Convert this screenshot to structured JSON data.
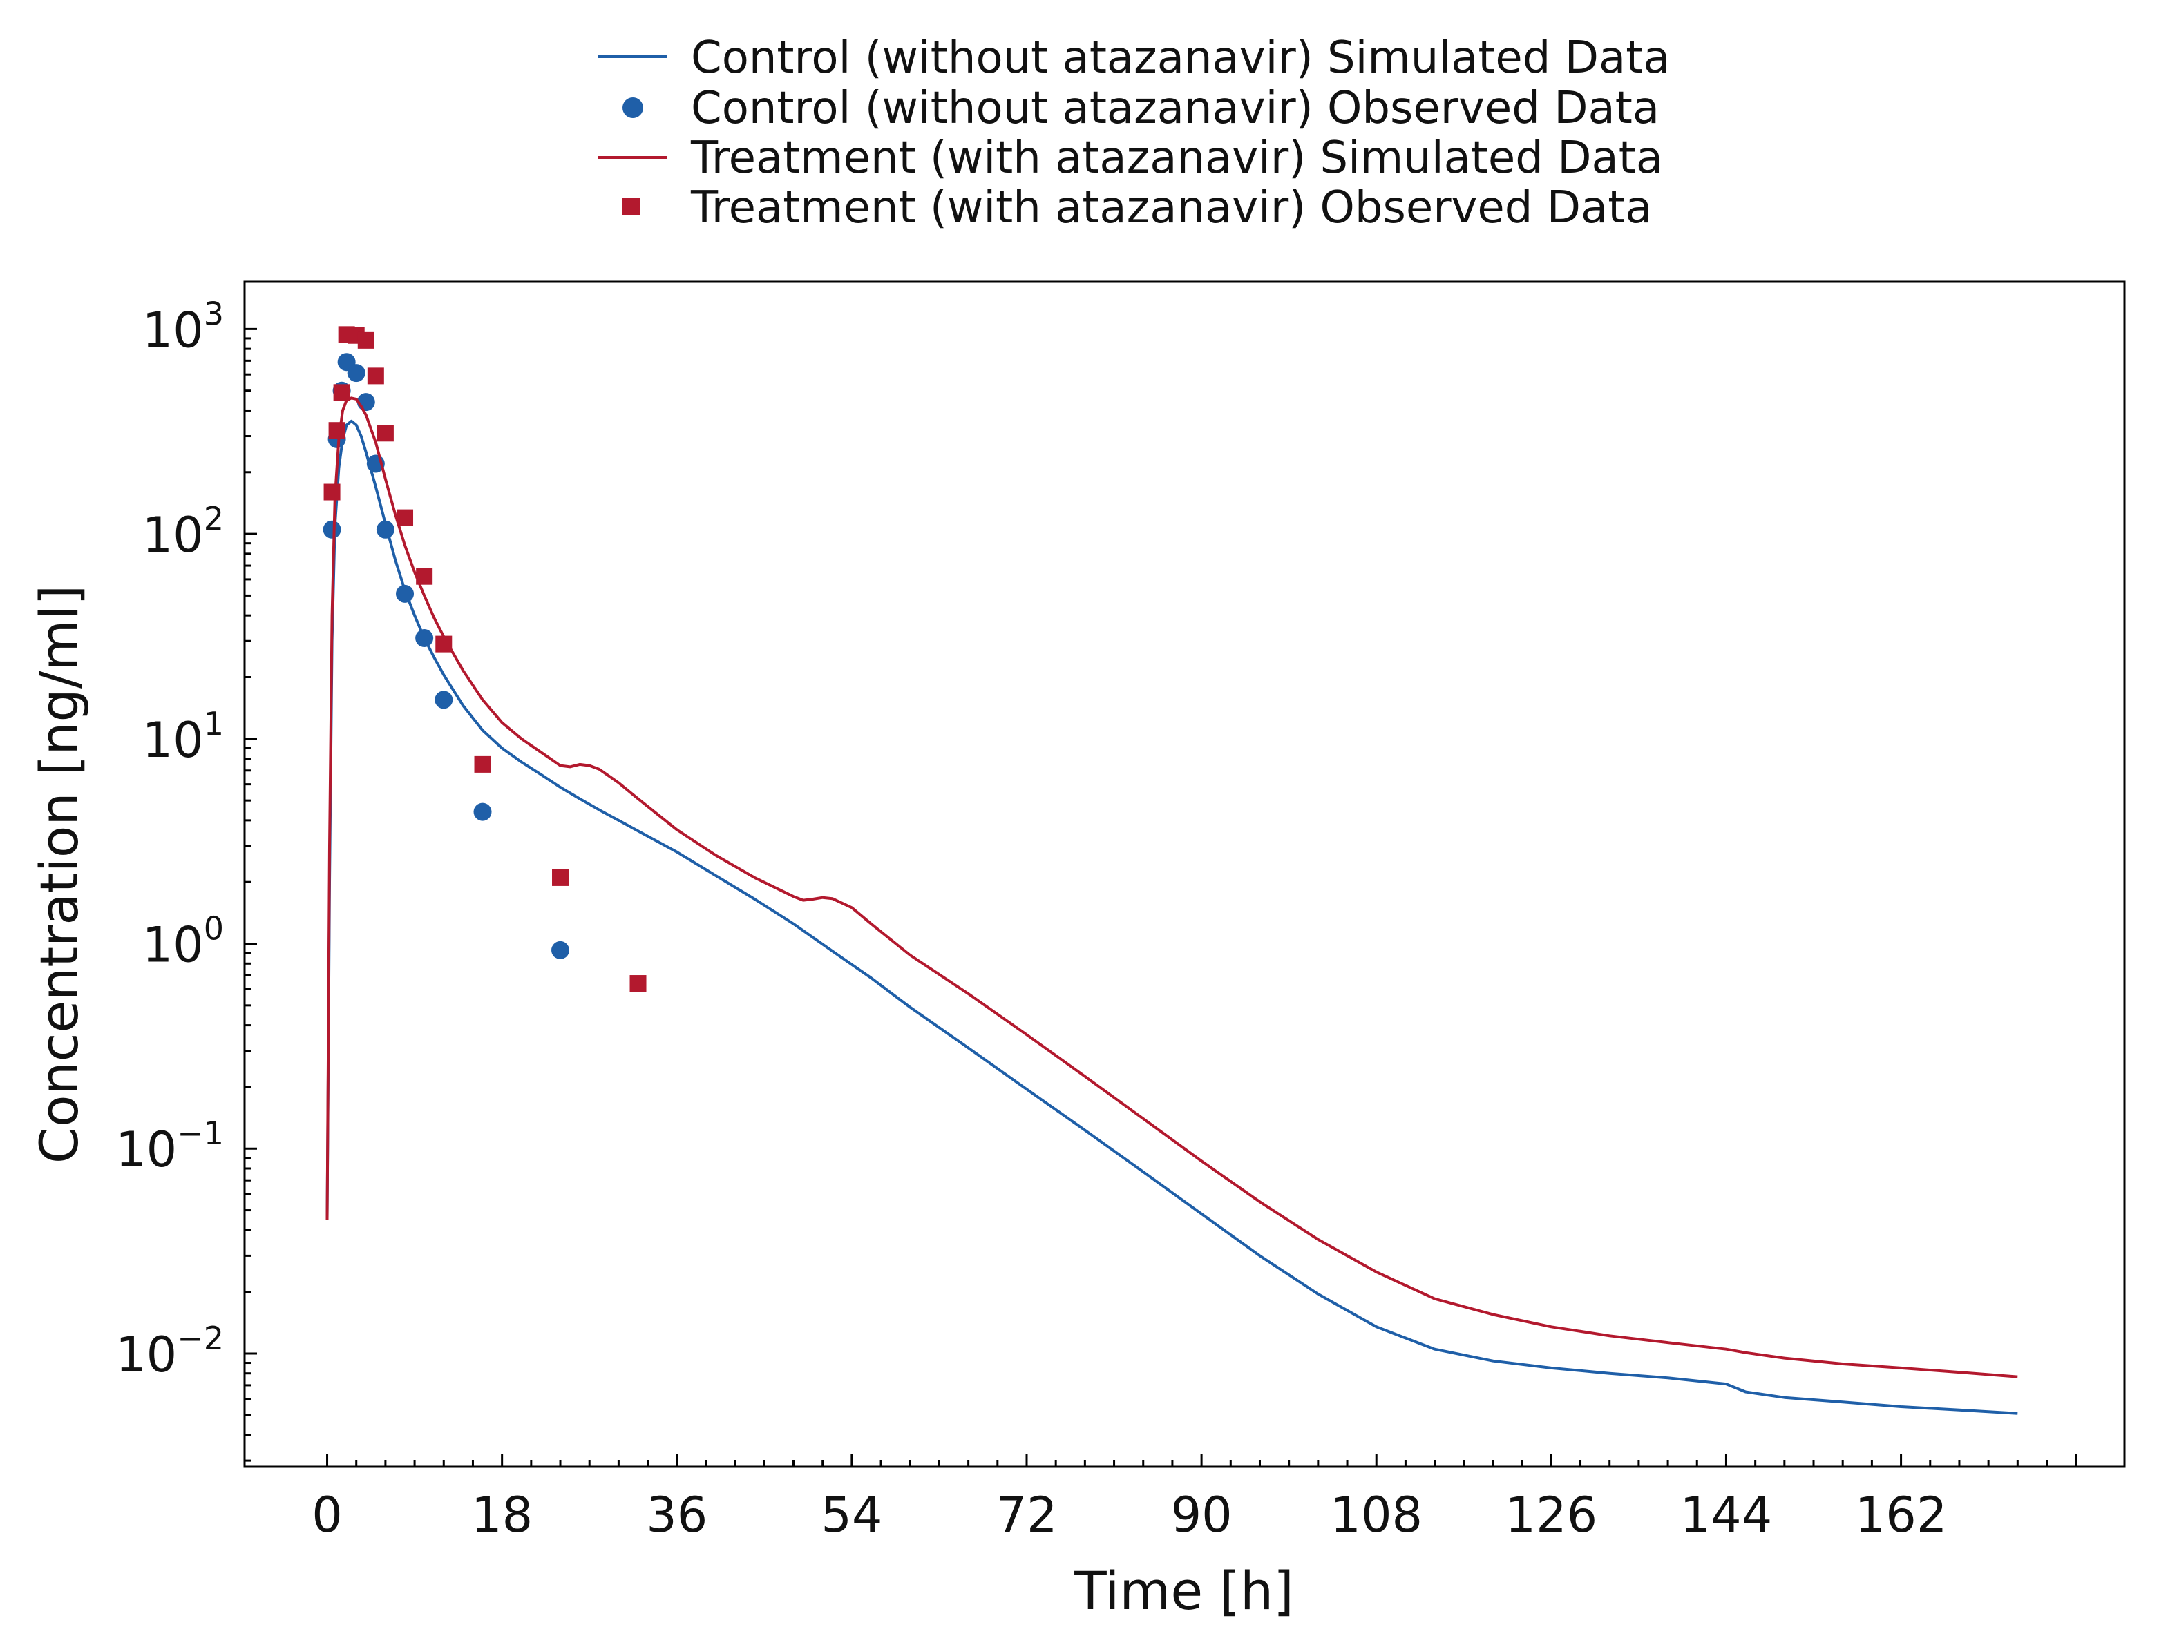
{
  "chart_data": {
    "type": "line",
    "title": "",
    "xlabel": "Time [h]",
    "ylabel": "Concentration [ng/ml]",
    "x_scale": "linear",
    "y_scale": "log",
    "xlim": [
      -8.5,
      185
    ],
    "ylim": [
      0.0028,
      1700
    ],
    "xticks": [
      0,
      18,
      36,
      54,
      72,
      90,
      108,
      126,
      144,
      162
    ],
    "xtick_labels": [
      "0",
      "18",
      "36",
      "54",
      "72",
      "90",
      "108",
      "126",
      "144",
      "162"
    ],
    "yticks": [
      {
        "value": 0.01,
        "base": "10",
        "exp": "−2"
      },
      {
        "value": 0.1,
        "base": "10",
        "exp": "−1"
      },
      {
        "value": 1,
        "base": "10",
        "exp": "0"
      },
      {
        "value": 10,
        "base": "10",
        "exp": "1"
      },
      {
        "value": 100,
        "base": "10",
        "exp": "2"
      },
      {
        "value": 1000,
        "base": "10",
        "exp": "3"
      }
    ],
    "grid": false,
    "legend_position": "top-center, above plot",
    "legend": [
      {
        "label": "Control (without atazanavir) Simulated Data",
        "marker": "line",
        "color": "#1f5fa8"
      },
      {
        "label": "Control (without atazanavir) Observed Data",
        "marker": "circle",
        "color": "#1f5fa8"
      },
      {
        "label": "Treatment (with atazanavir) Simulated Data",
        "marker": "line",
        "color": "#b3192e"
      },
      {
        "label": "Treatment (with atazanavir) Observed Data",
        "marker": "square",
        "color": "#b3192e"
      }
    ],
    "series": [
      {
        "kind": "line",
        "color": "#1f5fa8",
        "x": [
          0,
          0.25,
          0.5,
          0.8,
          1.2,
          1.6,
          2,
          2.5,
          3,
          3.5,
          4,
          5,
          6,
          7,
          8,
          9,
          10,
          11,
          12,
          14,
          16,
          18,
          20,
          22,
          24,
          26,
          28,
          30,
          32,
          36,
          40,
          44,
          48,
          52,
          56,
          60,
          66,
          72,
          78,
          84,
          90,
          96,
          102,
          108,
          114,
          120,
          126,
          132,
          138,
          144,
          146,
          150,
          156,
          162,
          168,
          174
        ],
        "y": [
          0.045,
          2,
          30,
          110,
          210,
          290,
          340,
          355,
          340,
          300,
          250,
          170,
          112,
          75,
          53,
          40,
          31,
          25,
          20.5,
          14.5,
          11,
          9,
          7.7,
          6.7,
          5.8,
          5.1,
          4.5,
          4,
          3.55,
          2.8,
          2.15,
          1.65,
          1.25,
          0.92,
          0.68,
          0.49,
          0.31,
          0.195,
          0.123,
          0.077,
          0.048,
          0.03,
          0.0195,
          0.0135,
          0.0105,
          0.0092,
          0.0085,
          0.008,
          0.0076,
          0.0071,
          0.0065,
          0.0061,
          0.0058,
          0.0055,
          0.0053,
          0.0051
        ]
      },
      {
        "kind": "scatter",
        "marker": "circle",
        "color": "#1f5fa8",
        "x": [
          0.5,
          1,
          1.5,
          2,
          3,
          4,
          5,
          6,
          8,
          10,
          12,
          16,
          24
        ],
        "y": [
          105,
          290,
          500,
          690,
          610,
          440,
          220,
          105,
          51,
          31,
          15.5,
          4.4,
          0.93
        ]
      },
      {
        "kind": "line",
        "color": "#b3192e",
        "x": [
          0,
          0.25,
          0.5,
          0.8,
          1.2,
          1.6,
          2,
          2.5,
          3,
          3.5,
          4,
          5,
          6,
          7,
          8,
          9,
          10,
          11,
          12,
          14,
          16,
          18,
          20,
          22,
          24,
          25,
          26,
          27,
          28,
          30,
          32,
          36,
          40,
          44,
          48,
          49,
          50,
          51,
          52,
          54,
          56,
          60,
          66,
          72,
          78,
          84,
          90,
          96,
          102,
          108,
          114,
          120,
          126,
          132,
          138,
          144,
          146,
          150,
          156,
          162,
          168,
          174
        ],
        "y": [
          0.045,
          3,
          40,
          150,
          290,
          400,
          450,
          460,
          455,
          420,
          380,
          280,
          185,
          125,
          88,
          65,
          50,
          39,
          31.5,
          21.5,
          15.5,
          12,
          10,
          8.6,
          7.4,
          7.3,
          7.5,
          7.4,
          7.1,
          6.1,
          5.1,
          3.6,
          2.7,
          2.1,
          1.7,
          1.63,
          1.65,
          1.68,
          1.66,
          1.5,
          1.25,
          0.88,
          0.57,
          0.36,
          0.225,
          0.14,
          0.087,
          0.055,
          0.036,
          0.025,
          0.0185,
          0.0155,
          0.0135,
          0.0122,
          0.0113,
          0.0105,
          0.0101,
          0.0095,
          0.0089,
          0.0085,
          0.0081,
          0.0077
        ]
      },
      {
        "kind": "scatter",
        "marker": "square",
        "color": "#b3192e",
        "x": [
          0.5,
          1,
          1.5,
          2,
          3,
          4,
          5,
          6,
          8,
          10,
          12,
          16,
          24,
          32
        ],
        "y": [
          160,
          320,
          490,
          940,
          930,
          880,
          590,
          310,
          120,
          62,
          29,
          7.5,
          2.1,
          0.64
        ]
      }
    ]
  }
}
